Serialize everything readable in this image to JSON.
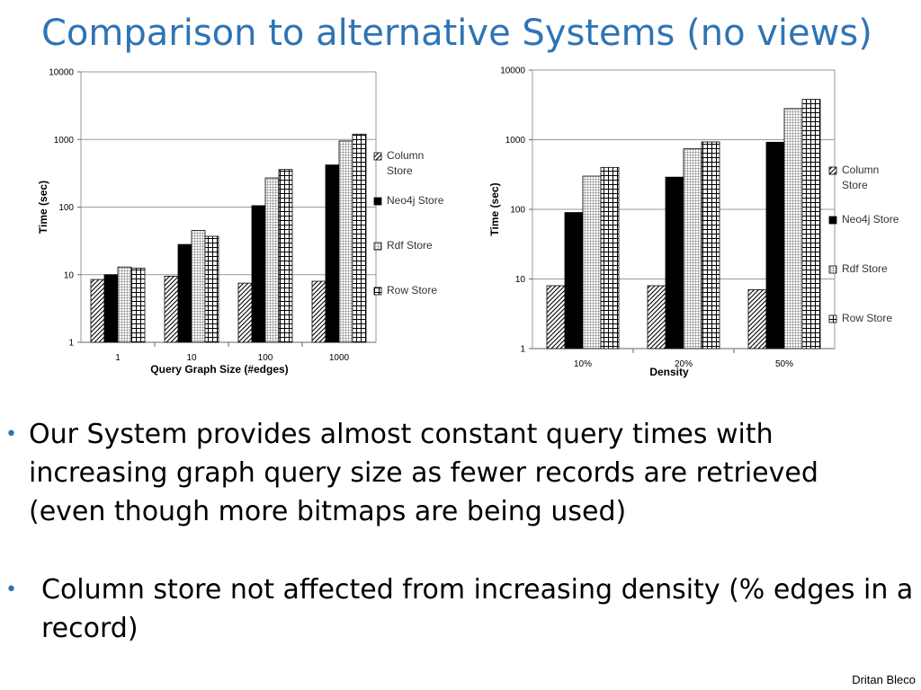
{
  "slide": {
    "title": "Comparison to alternative Systems (no views)",
    "footer": "Dritan Bleco",
    "bullets": [
      "Our System provides almost constant query times with increasing graph query size as fewer records are retrieved (even though more bitmaps are being used)",
      "Column store not affected from increasing density (% edges in a record)"
    ],
    "bullet_color": "#2e74b5"
  },
  "chart_data": [
    {
      "type": "bar",
      "title": "",
      "xlabel": "Query Graph Size (#edges)",
      "ylabel": "Time (sec)",
      "yscale": "log",
      "ylim": [
        1,
        10000
      ],
      "yticks": [
        "1",
        "10",
        "100",
        "1000",
        "10000"
      ],
      "categories": [
        "1",
        "10",
        "100",
        "1000"
      ],
      "grid": true,
      "legend_position": "right",
      "series": [
        {
          "name": "Column Store",
          "pattern": "diagonal-hatch",
          "values": [
            8.5,
            9.5,
            7.5,
            8.0
          ]
        },
        {
          "name": "Neo4j Store",
          "pattern": "solid-black",
          "values": [
            10,
            28,
            105,
            420
          ]
        },
        {
          "name": "Rdf Store",
          "pattern": "fine-grid",
          "values": [
            13,
            45,
            270,
            950
          ]
        },
        {
          "name": "Row Store",
          "pattern": "coarse-grid",
          "values": [
            12.5,
            37,
            360,
            1200
          ]
        }
      ]
    },
    {
      "type": "bar",
      "title": "",
      "xlabel": "Density",
      "ylabel": "Time (sec)",
      "yscale": "log",
      "ylim": [
        1,
        10000
      ],
      "yticks": [
        "1",
        "10",
        "100",
        "1000",
        "10000"
      ],
      "categories": [
        "10%",
        "20%",
        "50%"
      ],
      "grid": true,
      "legend_position": "right",
      "series": [
        {
          "name": "Column Store",
          "pattern": "diagonal-hatch",
          "values": [
            8,
            8,
            7
          ]
        },
        {
          "name": "Neo4j Store",
          "pattern": "solid-black",
          "values": [
            90,
            290,
            920
          ]
        },
        {
          "name": "Rdf Store",
          "pattern": "fine-grid",
          "values": [
            300,
            740,
            2800
          ]
        },
        {
          "name": "Row Store",
          "pattern": "coarse-grid",
          "values": [
            400,
            930,
            3800
          ]
        }
      ]
    }
  ]
}
